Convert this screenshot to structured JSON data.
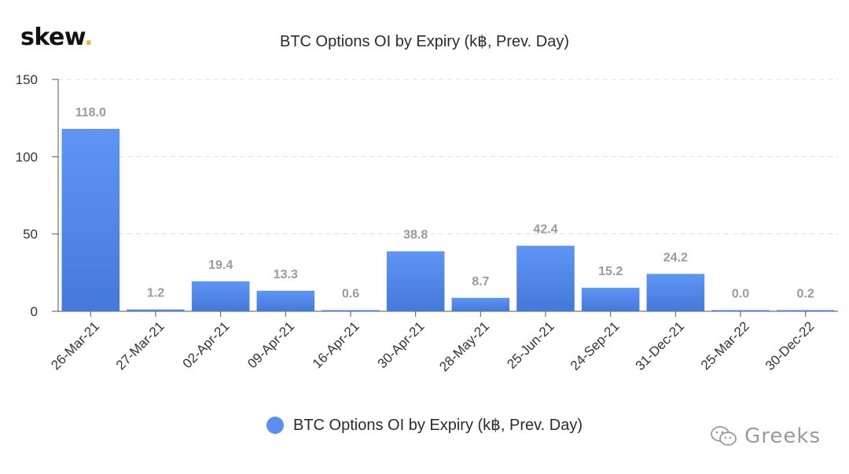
{
  "brand": {
    "logo_text": "skew",
    "logo_dot": ".",
    "watermark": "Greeks"
  },
  "colors": {
    "bar": "#5a8eef",
    "bar_bottom": "#3f74d6",
    "grid": "#dddddd",
    "data_label": "#9a9a9a"
  },
  "icons": {
    "watermark_icon": "wechat-icon"
  },
  "chart_data": {
    "type": "bar",
    "title": "BTC Options OI by Expiry (k฿, Prev. Day)",
    "xlabel": "",
    "ylabel": "",
    "categories": [
      "26-Mar-21",
      "27-Mar-21",
      "02-Apr-21",
      "09-Apr-21",
      "16-Apr-21",
      "30-Apr-21",
      "28-May-21",
      "25-Jun-21",
      "24-Sep-21",
      "31-Dec-21",
      "25-Mar-22",
      "30-Dec-22"
    ],
    "series": [
      {
        "name": "BTC Options OI by Expiry (k฿, Prev. Day)",
        "values": [
          118.0,
          1.2,
          19.4,
          13.3,
          0.6,
          38.8,
          8.7,
          42.4,
          15.2,
          24.2,
          0.0,
          0.2
        ],
        "labels": [
          "118.0",
          "1.2",
          "19.4",
          "13.3",
          "0.6",
          "38.8",
          "8.7",
          "42.4",
          "15.2",
          "24.2",
          "0.0",
          "0.2"
        ]
      }
    ],
    "ylim": [
      0,
      150
    ],
    "yticks": [
      0,
      50,
      100,
      150
    ],
    "grid": true,
    "legend": "bottom"
  }
}
